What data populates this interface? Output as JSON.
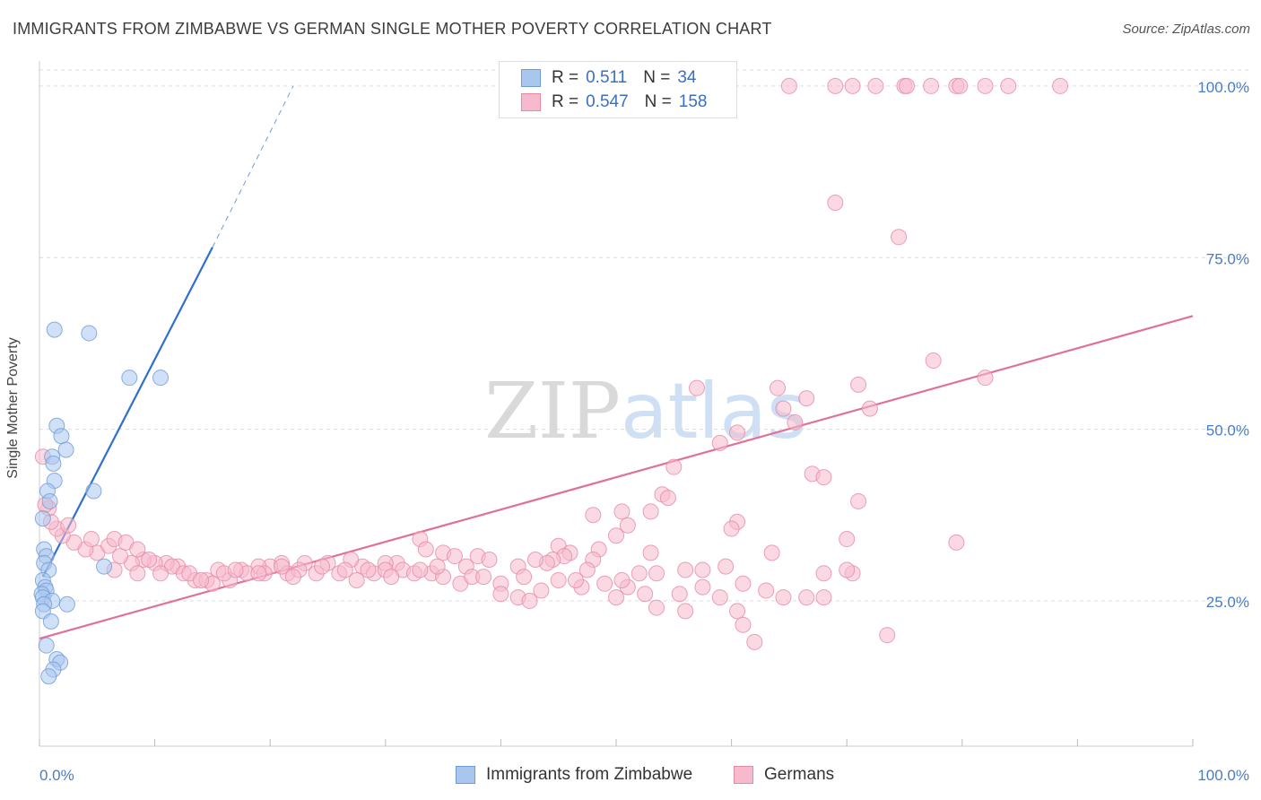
{
  "title": "IMMIGRANTS FROM ZIMBABWE VS GERMAN SINGLE MOTHER POVERTY CORRELATION CHART",
  "source": "Source: ZipAtlas.com",
  "watermark": "ZIPatlas",
  "legend": {
    "rows": [
      {
        "r_label": "R =",
        "r_value": "0.511",
        "n_label": "N =",
        "n_value": "34",
        "color": "#a9c6ef",
        "border": "#6f9bd8"
      },
      {
        "r_label": "R =",
        "r_value": "0.547",
        "n_label": "N =",
        "n_value": "158",
        "color": "#f7b9cc",
        "border": "#e68aa7"
      }
    ]
  },
  "bottom_legend": [
    {
      "label": "Immigrants from Zimbabwe",
      "color": "#a9c6ef",
      "border": "#6f9bd8"
    },
    {
      "label": "Germans",
      "color": "#f7b9cc",
      "border": "#e68aa7"
    }
  ],
  "chart_data": {
    "type": "scatter",
    "title": "IMMIGRANTS FROM ZIMBABWE VS GERMAN SINGLE MOTHER POVERTY CORRELATION CHART",
    "xlabel": "",
    "ylabel": "Single Mother Poverty",
    "xlim": [
      0,
      100
    ],
    "ylim": [
      0,
      105
    ],
    "x_tick_labels": [
      "0.0%",
      "100.0%"
    ],
    "y_ticks": [
      25,
      50,
      75,
      100
    ],
    "y_tick_labels": [
      "25.0%",
      "50.0%",
      "75.0%",
      "100.0%"
    ],
    "grid": "horizontal dashed",
    "legend_placement": "top-center",
    "series": [
      {
        "name": "Immigrants from Zimbabwe",
        "color": "#6f9bd8",
        "fill": "#a9c6ef",
        "trend": {
          "x": [
            0.3,
            15
          ],
          "y": [
            28.5,
            76.5
          ],
          "dashed_to": {
            "x": 22,
            "y": 100
          }
        },
        "points": [
          {
            "x": 1.3,
            "y": 64.5
          },
          {
            "x": 4.3,
            "y": 64
          },
          {
            "x": 7.8,
            "y": 57.5
          },
          {
            "x": 10.5,
            "y": 57.5
          },
          {
            "x": 1.5,
            "y": 50.5
          },
          {
            "x": 1.9,
            "y": 49
          },
          {
            "x": 2.3,
            "y": 47
          },
          {
            "x": 1.1,
            "y": 46
          },
          {
            "x": 1.2,
            "y": 45
          },
          {
            "x": 1.3,
            "y": 42.5
          },
          {
            "x": 0.7,
            "y": 41
          },
          {
            "x": 4.7,
            "y": 41
          },
          {
            "x": 0.9,
            "y": 39.5
          },
          {
            "x": 0.3,
            "y": 37
          },
          {
            "x": 0.4,
            "y": 32.5
          },
          {
            "x": 0.6,
            "y": 31.5
          },
          {
            "x": 0.4,
            "y": 30.5
          },
          {
            "x": 0.8,
            "y": 29.5
          },
          {
            "x": 5.6,
            "y": 30
          },
          {
            "x": 0.3,
            "y": 28
          },
          {
            "x": 0.5,
            "y": 27
          },
          {
            "x": 0.6,
            "y": 26.5
          },
          {
            "x": 0.2,
            "y": 26
          },
          {
            "x": 0.3,
            "y": 25.5
          },
          {
            "x": 1.1,
            "y": 25
          },
          {
            "x": 0.4,
            "y": 24.5
          },
          {
            "x": 2.4,
            "y": 24.5
          },
          {
            "x": 0.3,
            "y": 23.5
          },
          {
            "x": 1.0,
            "y": 22
          },
          {
            "x": 0.6,
            "y": 18.5
          },
          {
            "x": 1.5,
            "y": 16.5
          },
          {
            "x": 1.8,
            "y": 16
          },
          {
            "x": 1.2,
            "y": 15
          },
          {
            "x": 0.8,
            "y": 14
          }
        ]
      },
      {
        "name": "Germans",
        "color": "#e68aa7",
        "fill": "#f7b9cc",
        "trend": {
          "x": [
            0,
            100
          ],
          "y": [
            19.5,
            66.5
          ]
        },
        "points": [
          {
            "x": 65,
            "y": 100
          },
          {
            "x": 69,
            "y": 100
          },
          {
            "x": 70.5,
            "y": 100
          },
          {
            "x": 72.5,
            "y": 100
          },
          {
            "x": 75,
            "y": 100
          },
          {
            "x": 75.2,
            "y": 100
          },
          {
            "x": 77.3,
            "y": 100
          },
          {
            "x": 79.5,
            "y": 100
          },
          {
            "x": 79.8,
            "y": 100
          },
          {
            "x": 82,
            "y": 100
          },
          {
            "x": 84,
            "y": 100
          },
          {
            "x": 88.5,
            "y": 100
          },
          {
            "x": 69,
            "y": 83
          },
          {
            "x": 74.5,
            "y": 78
          },
          {
            "x": 77.5,
            "y": 60
          },
          {
            "x": 82,
            "y": 57.5
          },
          {
            "x": 57,
            "y": 56
          },
          {
            "x": 64,
            "y": 56
          },
          {
            "x": 71,
            "y": 56.5
          },
          {
            "x": 66.5,
            "y": 54.5
          },
          {
            "x": 64.5,
            "y": 53
          },
          {
            "x": 72,
            "y": 53
          },
          {
            "x": 65.5,
            "y": 51
          },
          {
            "x": 60.5,
            "y": 49.5
          },
          {
            "x": 59,
            "y": 48
          },
          {
            "x": 55,
            "y": 44.5
          },
          {
            "x": 67,
            "y": 43.5
          },
          {
            "x": 68,
            "y": 43
          },
          {
            "x": 54,
            "y": 40.5
          },
          {
            "x": 54.5,
            "y": 40
          },
          {
            "x": 71,
            "y": 39.5
          },
          {
            "x": 53,
            "y": 38
          },
          {
            "x": 50.5,
            "y": 38
          },
          {
            "x": 48,
            "y": 37.5
          },
          {
            "x": 60.5,
            "y": 36.5
          },
          {
            "x": 51,
            "y": 36
          },
          {
            "x": 60,
            "y": 35.5
          },
          {
            "x": 50,
            "y": 34.5
          },
          {
            "x": 70,
            "y": 34
          },
          {
            "x": 79.5,
            "y": 33.5
          },
          {
            "x": 33,
            "y": 34
          },
          {
            "x": 33.5,
            "y": 32.5
          },
          {
            "x": 48.5,
            "y": 32.5
          },
          {
            "x": 53,
            "y": 32
          },
          {
            "x": 45,
            "y": 33
          },
          {
            "x": 63.5,
            "y": 32
          },
          {
            "x": 35,
            "y": 32
          },
          {
            "x": 46,
            "y": 32
          },
          {
            "x": 45.5,
            "y": 31.5
          },
          {
            "x": 36,
            "y": 31.5
          },
          {
            "x": 38,
            "y": 31.5
          },
          {
            "x": 39,
            "y": 31
          },
          {
            "x": 44.5,
            "y": 31
          },
          {
            "x": 48,
            "y": 31
          },
          {
            "x": 44,
            "y": 30.5
          },
          {
            "x": 43,
            "y": 31
          },
          {
            "x": 41.5,
            "y": 30
          },
          {
            "x": 31,
            "y": 30.5
          },
          {
            "x": 30,
            "y": 30.5
          },
          {
            "x": 37,
            "y": 30
          },
          {
            "x": 28,
            "y": 30
          },
          {
            "x": 27,
            "y": 31
          },
          {
            "x": 25,
            "y": 30.5
          },
          {
            "x": 23,
            "y": 30.5
          },
          {
            "x": 21,
            "y": 30.5
          },
          {
            "x": 20,
            "y": 30
          },
          {
            "x": 19,
            "y": 30
          },
          {
            "x": 17.5,
            "y": 29.5
          },
          {
            "x": 15.5,
            "y": 29.5
          },
          {
            "x": 12,
            "y": 30
          },
          {
            "x": 11,
            "y": 30.5
          },
          {
            "x": 10,
            "y": 30.5
          },
          {
            "x": 9,
            "y": 31
          },
          {
            "x": 8,
            "y": 30.5
          },
          {
            "x": 7,
            "y": 31.5
          },
          {
            "x": 5,
            "y": 32
          },
          {
            "x": 4,
            "y": 32.5
          },
          {
            "x": 3,
            "y": 33.5
          },
          {
            "x": 2,
            "y": 34.5
          },
          {
            "x": 1.5,
            "y": 35.5
          },
          {
            "x": 1,
            "y": 36.5
          },
          {
            "x": 0.8,
            "y": 38.5
          },
          {
            "x": 0.3,
            "y": 46
          },
          {
            "x": 0.5,
            "y": 39
          },
          {
            "x": 2.5,
            "y": 36
          },
          {
            "x": 4.5,
            "y": 34
          },
          {
            "x": 6,
            "y": 33
          },
          {
            "x": 6.5,
            "y": 34
          },
          {
            "x": 7.5,
            "y": 33.5
          },
          {
            "x": 8.5,
            "y": 32.5
          },
          {
            "x": 9.5,
            "y": 31
          },
          {
            "x": 11.5,
            "y": 30
          },
          {
            "x": 12.5,
            "y": 29
          },
          {
            "x": 13.5,
            "y": 28
          },
          {
            "x": 14.5,
            "y": 28
          },
          {
            "x": 15,
            "y": 27.5
          },
          {
            "x": 16.5,
            "y": 28
          },
          {
            "x": 18,
            "y": 29
          },
          {
            "x": 19.5,
            "y": 29
          },
          {
            "x": 21.5,
            "y": 29
          },
          {
            "x": 22.5,
            "y": 29.5
          },
          {
            "x": 24,
            "y": 29
          },
          {
            "x": 26,
            "y": 29
          },
          {
            "x": 27.5,
            "y": 28
          },
          {
            "x": 29,
            "y": 29
          },
          {
            "x": 30,
            "y": 29.5
          },
          {
            "x": 31.5,
            "y": 29.5
          },
          {
            "x": 32.5,
            "y": 29
          },
          {
            "x": 34,
            "y": 29
          },
          {
            "x": 35,
            "y": 28.5
          },
          {
            "x": 36.5,
            "y": 27.5
          },
          {
            "x": 37.5,
            "y": 28.5
          },
          {
            "x": 38.5,
            "y": 28.5
          },
          {
            "x": 40,
            "y": 27.5
          },
          {
            "x": 42,
            "y": 28.5
          },
          {
            "x": 43.5,
            "y": 26.5
          },
          {
            "x": 45,
            "y": 28
          },
          {
            "x": 47,
            "y": 27
          },
          {
            "x": 49,
            "y": 27.5
          },
          {
            "x": 51,
            "y": 27
          },
          {
            "x": 52.5,
            "y": 26
          },
          {
            "x": 55.5,
            "y": 26
          },
          {
            "x": 57.5,
            "y": 27
          },
          {
            "x": 59,
            "y": 25.5
          },
          {
            "x": 61,
            "y": 27.5
          },
          {
            "x": 63,
            "y": 26.5
          },
          {
            "x": 64.5,
            "y": 25.5
          },
          {
            "x": 66.5,
            "y": 25.5
          },
          {
            "x": 68,
            "y": 25.5
          },
          {
            "x": 68,
            "y": 29
          },
          {
            "x": 70.5,
            "y": 29
          },
          {
            "x": 70,
            "y": 29.5
          },
          {
            "x": 57.5,
            "y": 29.5
          },
          {
            "x": 59.5,
            "y": 30
          },
          {
            "x": 56,
            "y": 29.5
          },
          {
            "x": 53.5,
            "y": 29
          },
          {
            "x": 52,
            "y": 29
          },
          {
            "x": 50.5,
            "y": 28
          },
          {
            "x": 47.5,
            "y": 29.5
          },
          {
            "x": 46.5,
            "y": 28
          },
          {
            "x": 40,
            "y": 26
          },
          {
            "x": 41.5,
            "y": 25.5
          },
          {
            "x": 42.5,
            "y": 25
          },
          {
            "x": 50,
            "y": 25.5
          },
          {
            "x": 53.5,
            "y": 24
          },
          {
            "x": 56,
            "y": 23.5
          },
          {
            "x": 60.5,
            "y": 23.5
          },
          {
            "x": 61,
            "y": 21.5
          },
          {
            "x": 62,
            "y": 19
          },
          {
            "x": 73.5,
            "y": 20
          },
          {
            "x": 6.5,
            "y": 29.5
          },
          {
            "x": 8.5,
            "y": 29
          },
          {
            "x": 10.5,
            "y": 29
          },
          {
            "x": 13,
            "y": 29
          },
          {
            "x": 14,
            "y": 28
          },
          {
            "x": 16,
            "y": 29
          },
          {
            "x": 17,
            "y": 29.5
          },
          {
            "x": 19,
            "y": 29
          },
          {
            "x": 21,
            "y": 30
          },
          {
            "x": 22,
            "y": 28.5
          },
          {
            "x": 24.5,
            "y": 30
          },
          {
            "x": 26.5,
            "y": 29.5
          },
          {
            "x": 28.5,
            "y": 29.5
          },
          {
            "x": 30.5,
            "y": 28.5
          },
          {
            "x": 33,
            "y": 29.5
          },
          {
            "x": 34.5,
            "y": 30
          }
        ]
      }
    ]
  }
}
